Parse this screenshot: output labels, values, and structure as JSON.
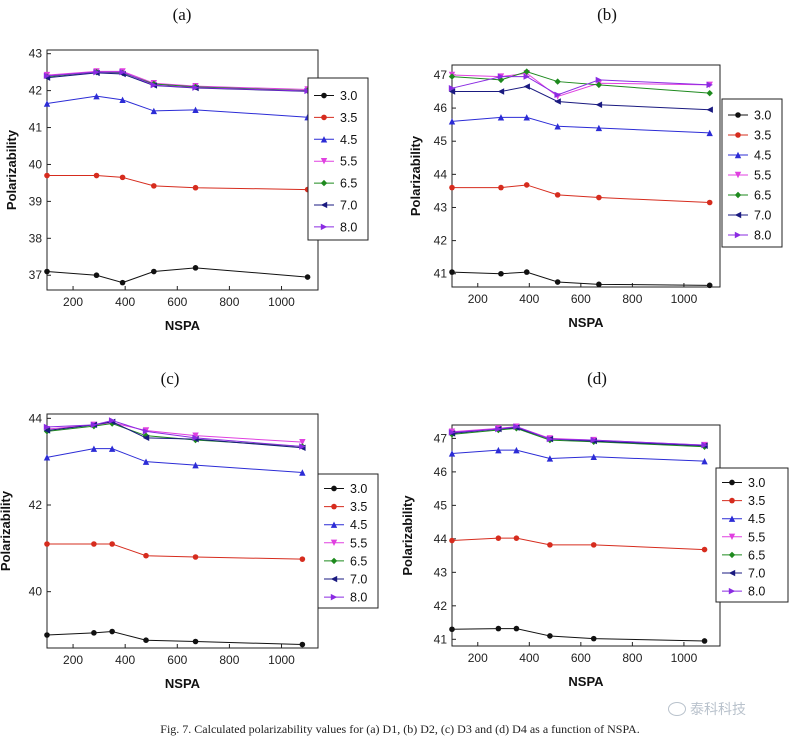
{
  "figure": {
    "caption": "Fig. 7. Calculated polarizability values for (a) D1, (b) D2, (c) D3 and (d) D4 as a function of NSPA.",
    "watermark": "泰科科技"
  },
  "series_colors": {
    "3.0": "#111111",
    "3.5": "#d62c1e",
    "4.5": "#2c2cd6",
    "5.5": "#e040e0",
    "6.5": "#1e8a1e",
    "7.0": "#1a1a80",
    "8.0": "#8a2be2"
  },
  "chart_data": [
    {
      "type": "line",
      "panel_label": "(a)",
      "xlabel": "NSPA",
      "ylabel": "Polarizability",
      "xlim": [
        100,
        1140
      ],
      "ylim": [
        36.6,
        43.1
      ],
      "xticks": [
        200,
        400,
        600,
        800,
        1000
      ],
      "yticks": [
        37,
        38,
        39,
        40,
        41,
        42,
        43
      ],
      "legend_position": "right",
      "series": [
        {
          "name": "3.0",
          "x": [
            100,
            290,
            390,
            510,
            670,
            1100
          ],
          "values": [
            37.1,
            37.0,
            36.8,
            37.1,
            37.2,
            36.95
          ]
        },
        {
          "name": "3.5",
          "x": [
            100,
            290,
            390,
            510,
            670,
            1100
          ],
          "values": [
            39.7,
            39.7,
            39.65,
            39.42,
            39.37,
            39.32
          ]
        },
        {
          "name": "4.5",
          "x": [
            100,
            290,
            390,
            510,
            670,
            1100
          ],
          "values": [
            41.65,
            41.85,
            41.75,
            41.45,
            41.48,
            41.28
          ]
        },
        {
          "name": "5.5",
          "x": [
            100,
            290,
            390,
            510,
            670,
            1100
          ],
          "values": [
            42.42,
            42.52,
            42.52,
            42.2,
            42.12,
            42.03
          ]
        },
        {
          "name": "6.5",
          "x": [
            100,
            290,
            390,
            510,
            670,
            1100
          ],
          "values": [
            42.38,
            42.5,
            42.48,
            42.18,
            42.1,
            42.0
          ]
        },
        {
          "name": "7.0",
          "x": [
            100,
            290,
            390,
            510,
            670,
            1100
          ],
          "values": [
            42.35,
            42.48,
            42.45,
            42.14,
            42.07,
            41.98
          ]
        },
        {
          "name": "8.0",
          "x": [
            100,
            290,
            390,
            510,
            670,
            1100
          ],
          "values": [
            42.4,
            42.5,
            42.5,
            42.15,
            42.08,
            41.99
          ]
        }
      ]
    },
    {
      "type": "line",
      "panel_label": "(b)",
      "xlabel": "NSPA",
      "ylabel": "Polarizability",
      "xlim": [
        100,
        1140
      ],
      "ylim": [
        40.6,
        47.3
      ],
      "xticks": [
        200,
        400,
        600,
        800,
        1000
      ],
      "yticks": [
        41,
        42,
        43,
        44,
        45,
        46,
        47
      ],
      "legend_position": "right",
      "series": [
        {
          "name": "3.0",
          "x": [
            100,
            290,
            390,
            510,
            670,
            1100
          ],
          "values": [
            41.05,
            41.0,
            41.05,
            40.75,
            40.68,
            40.65
          ]
        },
        {
          "name": "3.5",
          "x": [
            100,
            290,
            390,
            510,
            670,
            1100
          ],
          "values": [
            43.6,
            43.6,
            43.68,
            43.38,
            43.3,
            43.15
          ]
        },
        {
          "name": "4.5",
          "x": [
            100,
            290,
            390,
            510,
            670,
            1100
          ],
          "values": [
            45.6,
            45.72,
            45.72,
            45.45,
            45.4,
            45.25
          ]
        },
        {
          "name": "5.5",
          "x": [
            100,
            290,
            390,
            510,
            670,
            1100
          ],
          "values": [
            47.0,
            46.95,
            47.05,
            46.35,
            46.75,
            46.7
          ]
        },
        {
          "name": "6.5",
          "x": [
            100,
            290,
            390,
            510,
            670,
            1100
          ],
          "values": [
            46.95,
            46.85,
            47.1,
            46.8,
            46.7,
            46.45
          ]
        },
        {
          "name": "7.0",
          "x": [
            100,
            290,
            390,
            510,
            670,
            1100
          ],
          "values": [
            46.5,
            46.5,
            46.65,
            46.2,
            46.1,
            45.95
          ]
        },
        {
          "name": "8.0",
          "x": [
            100,
            290,
            390,
            510,
            670,
            1100
          ],
          "values": [
            46.6,
            46.95,
            46.95,
            46.4,
            46.85,
            46.7
          ]
        }
      ]
    },
    {
      "type": "line",
      "panel_label": "(c)",
      "xlabel": "NSPA",
      "ylabel": "Polarizability",
      "xlim": [
        100,
        1140
      ],
      "ylim": [
        38.7,
        44.1
      ],
      "xticks": [
        200,
        400,
        600,
        800,
        1000
      ],
      "yticks": [
        40,
        42,
        44
      ],
      "legend_position": "right",
      "series": [
        {
          "name": "3.0",
          "x": [
            100,
            280,
            350,
            480,
            670,
            1080
          ],
          "values": [
            39.0,
            39.05,
            39.08,
            38.88,
            38.85,
            38.78
          ]
        },
        {
          "name": "3.5",
          "x": [
            100,
            280,
            350,
            480,
            670,
            1080
          ],
          "values": [
            41.1,
            41.1,
            41.1,
            40.83,
            40.8,
            40.75
          ]
        },
        {
          "name": "4.5",
          "x": [
            100,
            280,
            350,
            480,
            670,
            1080
          ],
          "values": [
            43.1,
            43.3,
            43.3,
            43.0,
            42.92,
            42.75
          ]
        },
        {
          "name": "5.5",
          "x": [
            100,
            280,
            350,
            480,
            670,
            1080
          ],
          "values": [
            43.75,
            43.85,
            43.9,
            43.72,
            43.6,
            43.45
          ]
        },
        {
          "name": "6.5",
          "x": [
            100,
            280,
            350,
            480,
            670,
            1080
          ],
          "values": [
            43.7,
            43.82,
            43.88,
            43.6,
            43.5,
            43.35
          ]
        },
        {
          "name": "7.0",
          "x": [
            100,
            280,
            350,
            480,
            670,
            1080
          ],
          "values": [
            43.72,
            43.85,
            43.92,
            43.55,
            43.52,
            43.32
          ]
        },
        {
          "name": "8.0",
          "x": [
            100,
            280,
            350,
            480,
            670,
            1080
          ],
          "values": [
            43.8,
            43.85,
            43.95,
            43.7,
            43.55,
            43.35
          ]
        }
      ]
    },
    {
      "type": "line",
      "panel_label": "(d)",
      "xlabel": "NSPA",
      "ylabel": "Polarizability",
      "xlim": [
        100,
        1140
      ],
      "ylim": [
        40.8,
        47.4
      ],
      "xticks": [
        200,
        400,
        600,
        800,
        1000
      ],
      "yticks": [
        41,
        42,
        43,
        44,
        45,
        46,
        47
      ],
      "legend_position": "right",
      "series": [
        {
          "name": "3.0",
          "x": [
            100,
            280,
            350,
            480,
            650,
            1080
          ],
          "values": [
            41.3,
            41.32,
            41.32,
            41.1,
            41.02,
            40.95
          ]
        },
        {
          "name": "3.5",
          "x": [
            100,
            280,
            350,
            480,
            650,
            1080
          ],
          "values": [
            43.95,
            44.02,
            44.02,
            43.82,
            43.82,
            43.68
          ]
        },
        {
          "name": "4.5",
          "x": [
            100,
            280,
            350,
            480,
            650,
            1080
          ],
          "values": [
            46.55,
            46.65,
            46.65,
            46.4,
            46.45,
            46.32
          ]
        },
        {
          "name": "5.5",
          "x": [
            100,
            280,
            350,
            480,
            650,
            1080
          ],
          "values": [
            47.2,
            47.3,
            47.35,
            47.0,
            46.95,
            46.8
          ]
        },
        {
          "name": "6.5",
          "x": [
            100,
            280,
            350,
            480,
            650,
            1080
          ],
          "values": [
            47.12,
            47.25,
            47.3,
            46.95,
            46.9,
            46.75
          ]
        },
        {
          "name": "7.0",
          "x": [
            100,
            280,
            350,
            480,
            650,
            1080
          ],
          "values": [
            47.15,
            47.28,
            47.32,
            46.98,
            46.92,
            46.78
          ]
        },
        {
          "name": "8.0",
          "x": [
            100,
            280,
            350,
            480,
            650,
            1080
          ],
          "values": [
            47.18,
            47.28,
            47.35,
            46.98,
            46.95,
            46.8
          ]
        }
      ]
    }
  ]
}
